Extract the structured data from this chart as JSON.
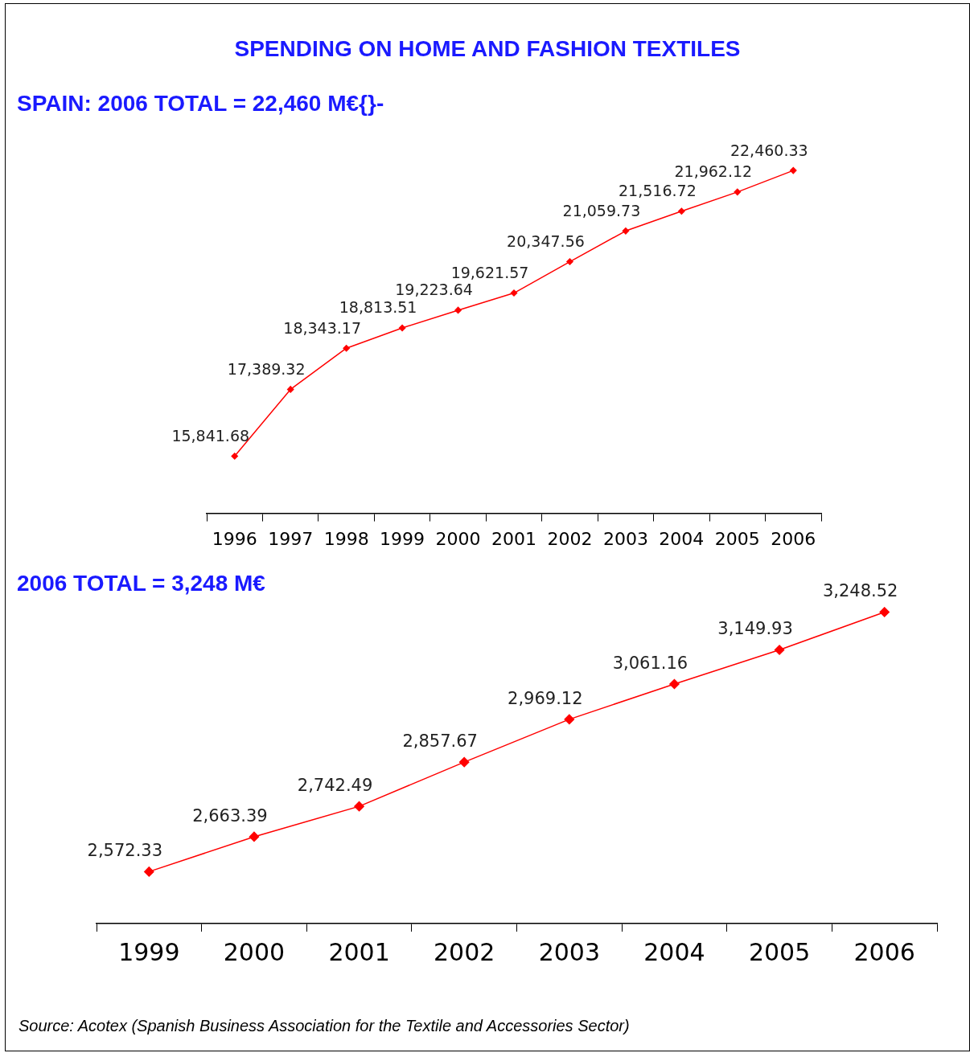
{
  "chart_data": [
    {
      "type": "line",
      "title": "SPENDING ON HOME AND FASHION TEXTILES",
      "subtitle": "SPAIN: 2006 TOTAL = 22,460 M€{}-",
      "categories": [
        "1996",
        "1997",
        "1998",
        "1999",
        "2000",
        "2001",
        "2002",
        "2003",
        "2004",
        "2005",
        "2006"
      ],
      "series": [
        {
          "color": "#ff0000",
          "values": [
            15841.68,
            17389.32,
            18343.17,
            18813.51,
            19223.64,
            19621.57,
            20347.56,
            21059.73,
            21516.72,
            21962.12,
            22460.33
          ],
          "value_labels": [
            "15,841.68",
            "17,389.32",
            "18,343.17",
            "18,813.51",
            "19,223.64",
            "19,621.57",
            "20,347.56",
            "21,059.73",
            "21,516.72",
            "21,962.12",
            "22,460.33"
          ]
        }
      ],
      "marker": "diamond",
      "tick_labels": "x"
    },
    {
      "type": "line",
      "subtitle": "2006 TOTAL = 3,248 M€",
      "categories": [
        "1999",
        "2000",
        "2001",
        "2002",
        "2003",
        "2004",
        "2005",
        "2006"
      ],
      "series": [
        {
          "color": "#ff0000",
          "values": [
            2572.33,
            2663.39,
            2742.49,
            2857.67,
            2969.12,
            3061.16,
            3149.93,
            3248.52
          ],
          "value_labels": [
            "2,572.33",
            "2,663.39",
            "2,742.49",
            "2,857.67",
            "2,969.12",
            "3,061.16",
            "3,149.93",
            "3,248.52"
          ]
        }
      ],
      "marker": "diamond",
      "tick_labels": "x",
      "annotations": [
        "Source: Acotex (Spanish Business Association for the Textile and Accessories Sector)"
      ]
    }
  ]
}
